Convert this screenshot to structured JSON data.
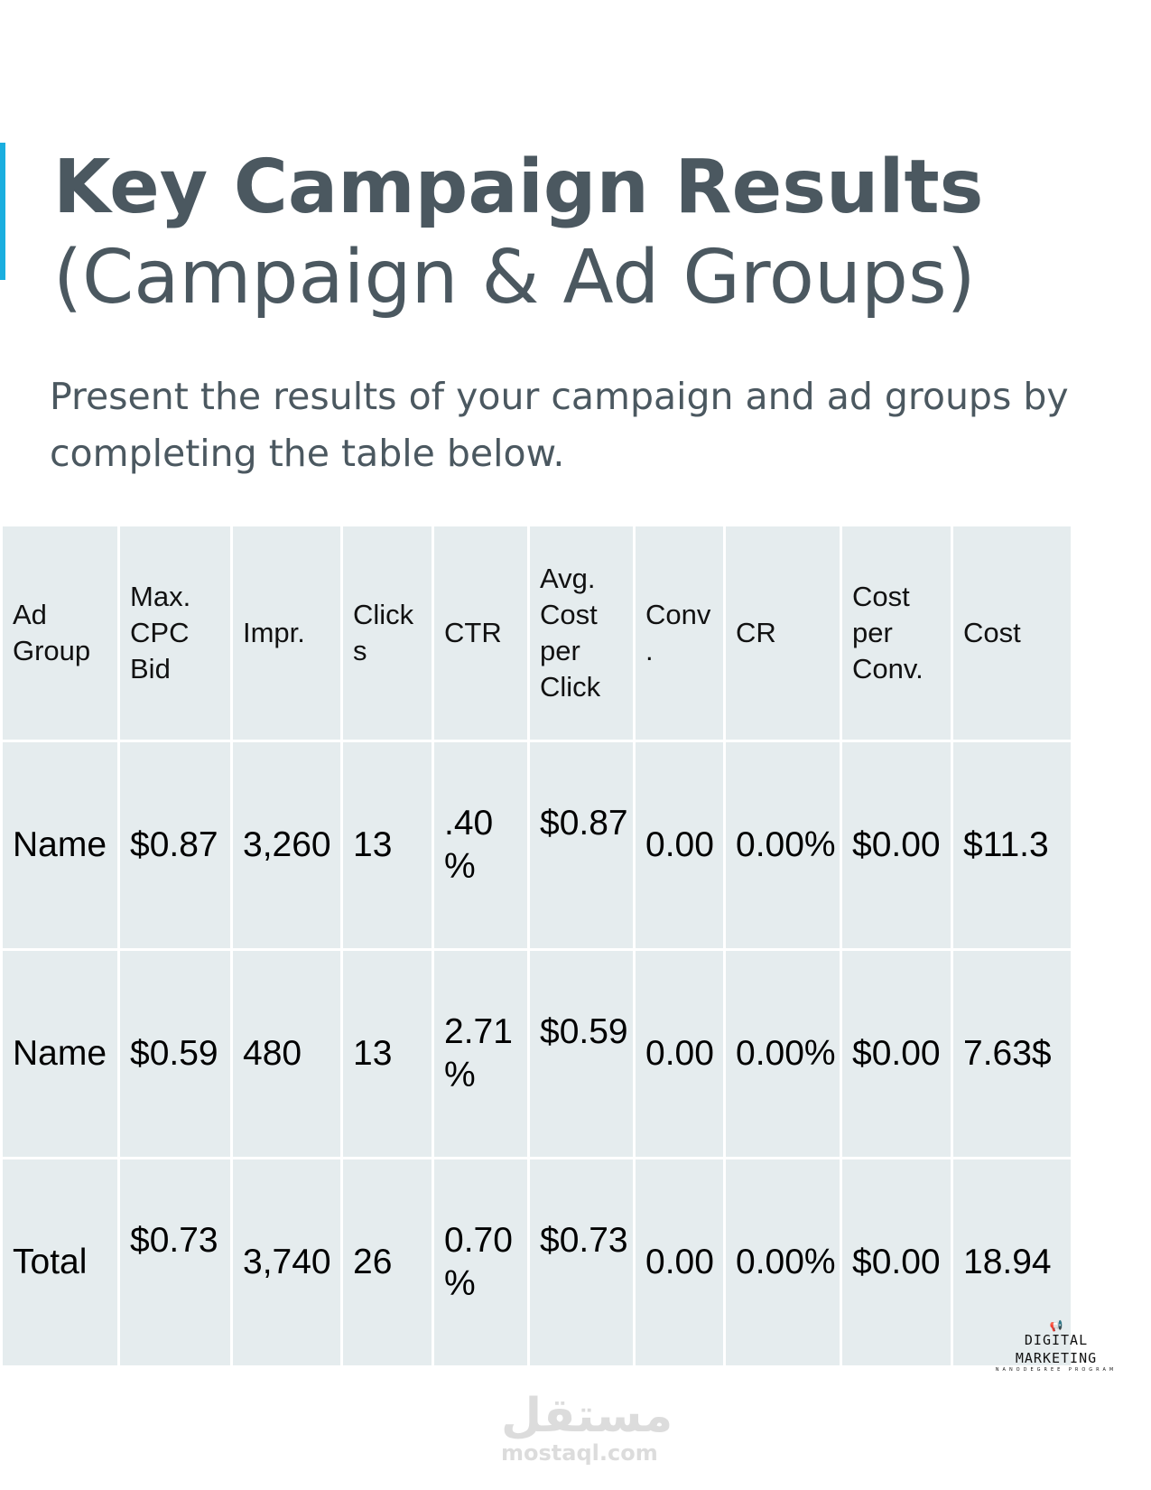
{
  "colors": {
    "accent": "#1aaedf",
    "title": "#4b5860",
    "cell": "#e5ecee"
  },
  "title": {
    "line1": "Key Campaign Results",
    "line2": "(Campaign & Ad Groups)"
  },
  "subtitle": "Present the results of your campaign and ad groups by completing the table below.",
  "table": {
    "headers": [
      "Ad\nGroup",
      "Max.\nCPC\nBid",
      "Impr.",
      "Click\ns",
      "CTR",
      "Avg.\nCost\nper\nClick",
      "Conv\n.",
      "CR",
      "Cost\nper\nConv.",
      "Cost"
    ],
    "rows": [
      [
        "Name",
        "$0.87",
        "3,260",
        "13",
        ".40\n%",
        "$0.87",
        "0.00",
        "0.00%",
        "$0.00",
        "$11.3"
      ],
      [
        "Name",
        "$0.59",
        "480",
        "13",
        "2.71\n%",
        "$0.59",
        "0.00",
        "0.00%",
        "$0.00",
        "7.63$"
      ],
      [
        "Total",
        "$0.73",
        "3,740",
        "26",
        "0.70\n%",
        "$0.73",
        "0.00",
        "0.00%",
        "$0.00",
        "18.94"
      ]
    ]
  },
  "logo": {
    "icon": "megaphone-icon",
    "text": "DIGITAL MARKETING",
    "subtext": "NANODEGREE PROGRAM"
  },
  "watermark": {
    "arabic": "مستقل",
    "latin": "mostaql.com"
  }
}
